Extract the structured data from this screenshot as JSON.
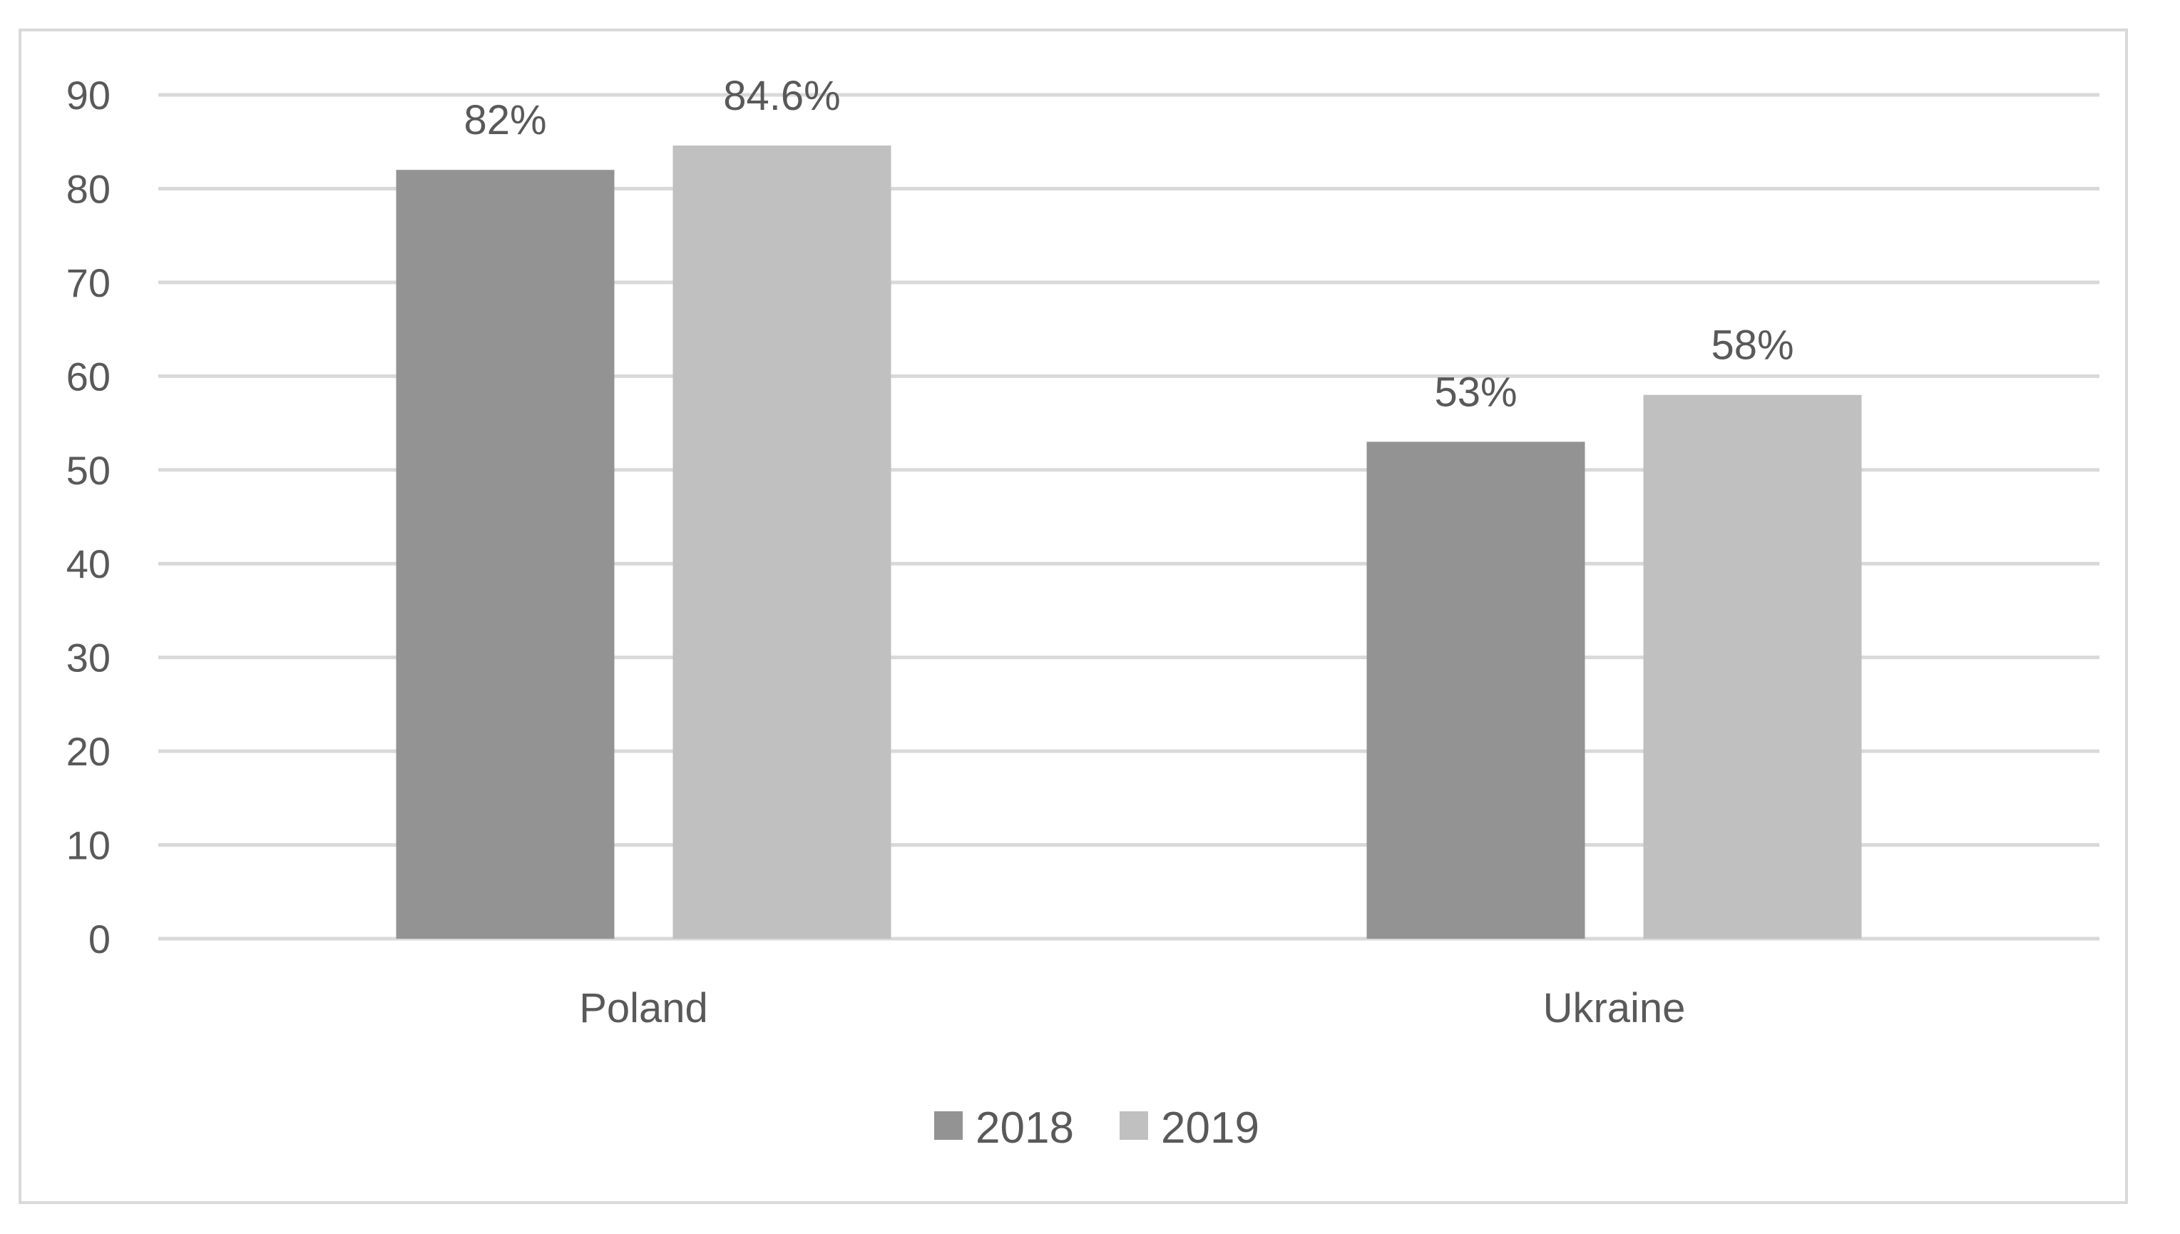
{
  "chart_data": {
    "type": "bar",
    "categories": [
      "Poland",
      "Ukraine"
    ],
    "series": [
      {
        "name": "2018",
        "values": [
          82,
          53
        ],
        "labels": [
          "82%",
          "53%"
        ],
        "color": "#939393"
      },
      {
        "name": "2019",
        "values": [
          84.6,
          58
        ],
        "labels": [
          "84.6%",
          "58%"
        ],
        "color": "#c0c0c0"
      }
    ],
    "title": "",
    "xlabel": "",
    "ylabel": "",
    "ylim": [
      0,
      90
    ],
    "yticks": [
      0,
      10,
      20,
      30,
      40,
      50,
      60,
      70,
      80,
      90
    ],
    "grid": true,
    "legend": "bottom-center",
    "gridline_color": "#d9d9d9",
    "text_color": "#595959"
  }
}
